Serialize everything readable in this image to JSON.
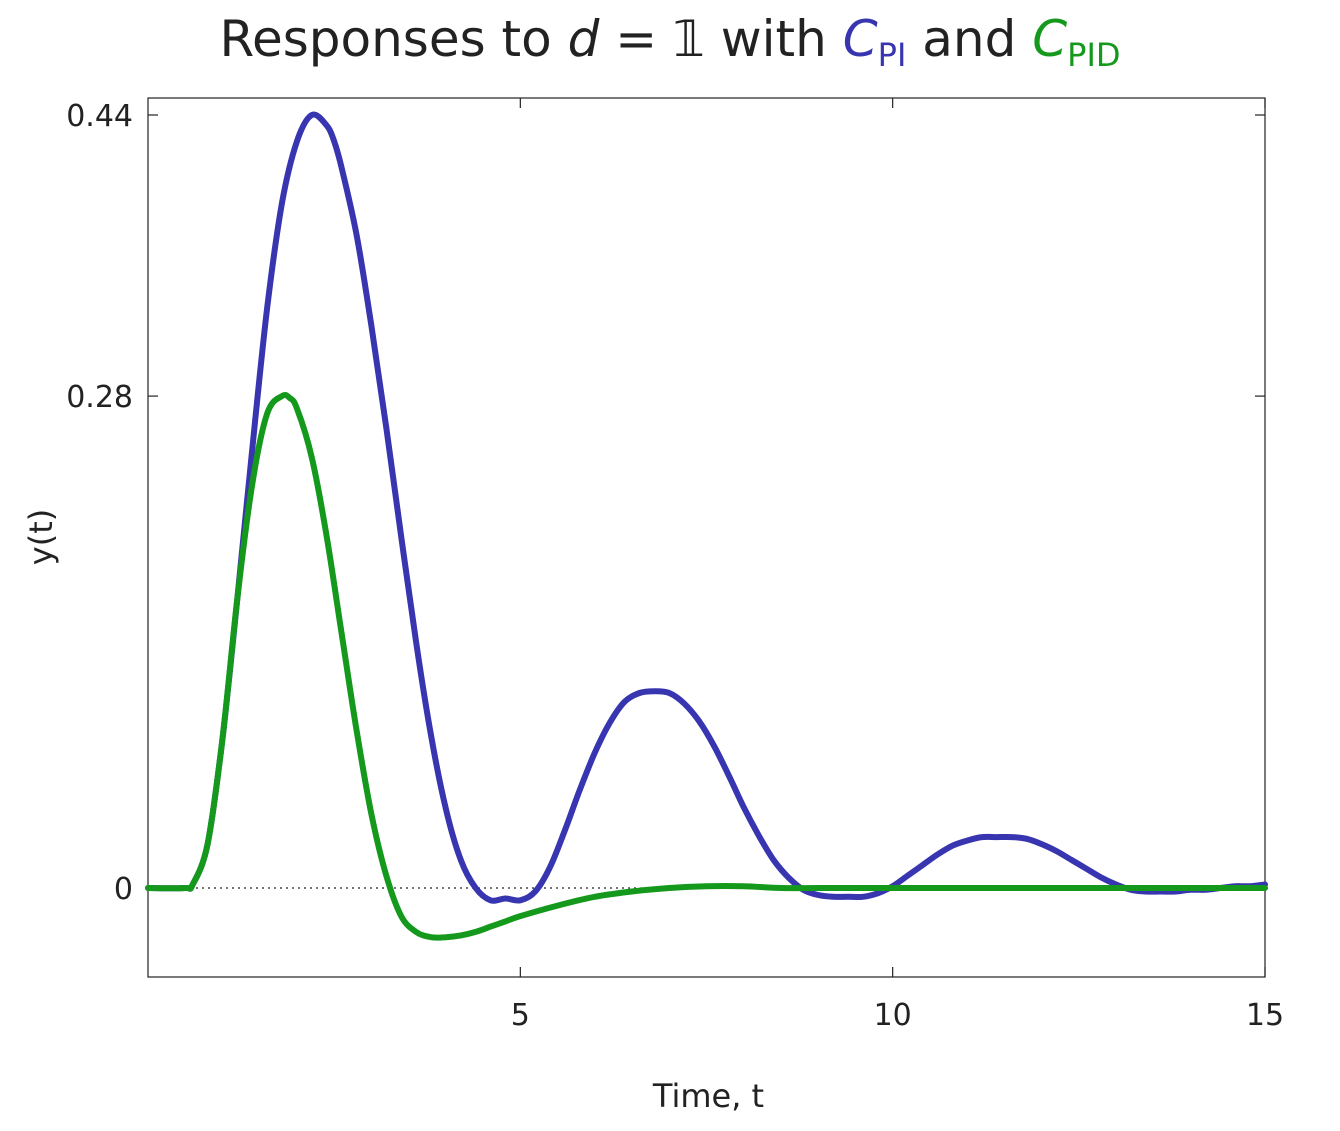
{
  "title": {
    "prefix": "Responses to ",
    "var_d": "d",
    "equals": " = 𝟙 with ",
    "pi_symbol": "C",
    "pi_sub": "PI",
    "and": " and ",
    "pid_symbol": "C",
    "pid_sub": "PID"
  },
  "chart_data": {
    "type": "line",
    "xlabel": "Time, t",
    "ylabel": "y(t)",
    "xlim": [
      0,
      15
    ],
    "ylim": [
      -0.05,
      0.45
    ],
    "x_ticks": [
      5,
      10,
      15
    ],
    "x_tick_labels": [
      "5",
      "10",
      "15"
    ],
    "y_ticks": [
      0,
      0.28,
      0.44
    ],
    "y_tick_labels": [
      "0",
      "0.28",
      "0.44"
    ],
    "grid": false,
    "reference_line": {
      "y": 0,
      "style": "dotted"
    },
    "series": [
      {
        "name": "C_PI",
        "color": "#3835b0",
        "x": [
          0,
          0.5,
          0.6,
          0.8,
          1.0,
          1.2,
          1.4,
          1.6,
          1.8,
          2.0,
          2.2,
          2.4,
          2.5,
          2.6,
          2.8,
          3.0,
          3.2,
          3.4,
          3.6,
          3.8,
          4.0,
          4.2,
          4.4,
          4.6,
          4.8,
          5.0,
          5.2,
          5.4,
          5.6,
          5.8,
          6.0,
          6.2,
          6.4,
          6.6,
          6.8,
          7.0,
          7.2,
          7.4,
          7.6,
          7.8,
          8.0,
          8.2,
          8.4,
          8.6,
          8.8,
          9.0,
          9.2,
          9.4,
          9.6,
          9.8,
          10.0,
          10.2,
          10.4,
          10.6,
          10.8,
          11.0,
          11.2,
          11.4,
          11.6,
          11.8,
          12.0,
          12.2,
          12.4,
          12.6,
          12.8,
          13.0,
          13.2,
          13.4,
          13.6,
          13.8,
          14.0,
          14.2,
          14.4,
          14.6,
          14.8,
          15.0
        ],
        "y": [
          0,
          0,
          0.002,
          0.025,
          0.085,
          0.165,
          0.25,
          0.33,
          0.39,
          0.425,
          0.44,
          0.434,
          0.425,
          0.41,
          0.372,
          0.32,
          0.262,
          0.2,
          0.14,
          0.087,
          0.045,
          0.016,
          0.0,
          -0.007,
          -0.006,
          -0.007,
          -0.002,
          0.012,
          0.033,
          0.056,
          0.077,
          0.094,
          0.106,
          0.111,
          0.112,
          0.111,
          0.105,
          0.095,
          0.081,
          0.064,
          0.046,
          0.03,
          0.016,
          0.006,
          -0.001,
          -0.004,
          -0.005,
          -0.005,
          -0.005,
          -0.003,
          0.001,
          0.007,
          0.013,
          0.019,
          0.024,
          0.027,
          0.029,
          0.029,
          0.029,
          0.028,
          0.025,
          0.021,
          0.016,
          0.011,
          0.006,
          0.002,
          -0.001,
          -0.002,
          -0.002,
          -0.002,
          -0.001,
          -0.001,
          0.0,
          0.001,
          0.001,
          0.002
        ]
      },
      {
        "name": "C_PID",
        "color": "#14991c",
        "x": [
          0,
          0.5,
          0.6,
          0.8,
          1.0,
          1.2,
          1.4,
          1.6,
          1.8,
          1.9,
          2.0,
          2.2,
          2.4,
          2.6,
          2.8,
          3.0,
          3.2,
          3.4,
          3.6,
          3.8,
          4.0,
          4.2,
          4.4,
          4.6,
          4.8,
          5.0,
          5.5,
          6.0,
          6.5,
          7.0,
          7.5,
          8.0,
          8.5,
          9.0,
          9.5,
          10.0,
          11.0,
          12.0,
          13.0,
          14.0,
          15.0
        ],
        "y": [
          0,
          0,
          0.002,
          0.025,
          0.085,
          0.165,
          0.23,
          0.27,
          0.28,
          0.279,
          0.273,
          0.245,
          0.2,
          0.145,
          0.09,
          0.042,
          0.007,
          -0.016,
          -0.025,
          -0.028,
          -0.028,
          -0.027,
          -0.025,
          -0.022,
          -0.019,
          -0.016,
          -0.01,
          -0.005,
          -0.002,
          0.0,
          0.001,
          0.001,
          0.0,
          0.0,
          0.0,
          0.0,
          0.0,
          0.0,
          0.0,
          0.0,
          0.0
        ]
      }
    ]
  }
}
